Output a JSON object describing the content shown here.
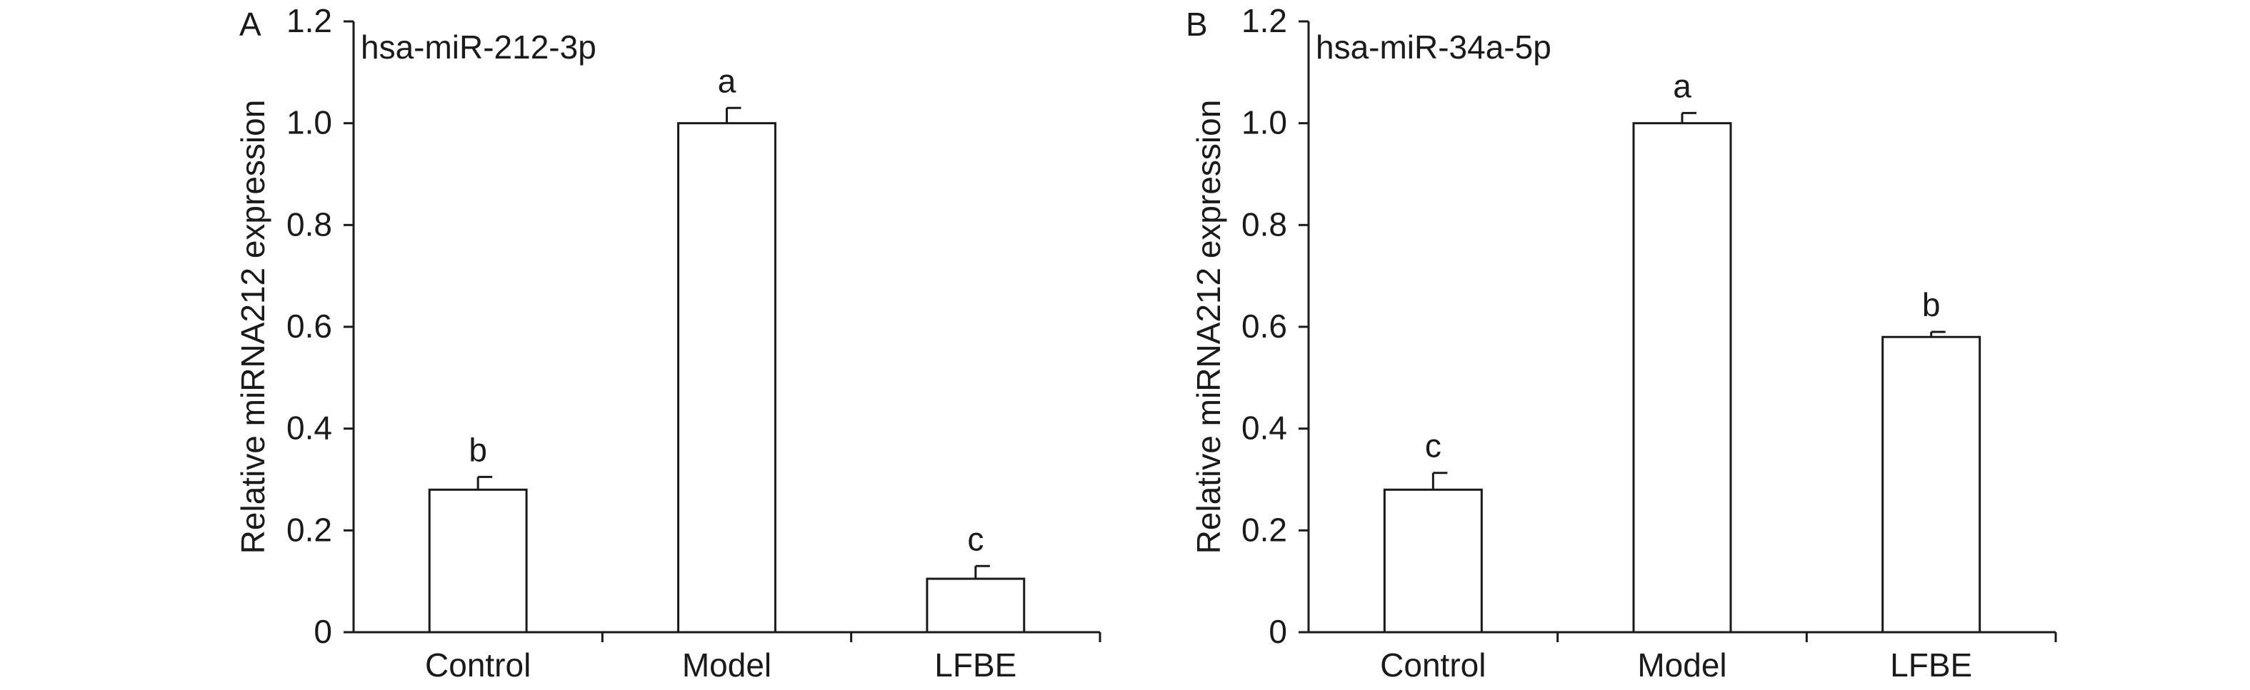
{
  "chart_data": [
    {
      "type": "bar",
      "panel_label": "A",
      "title": "hsa-miR-212-3p",
      "ylabel": "Relative miRNA212 expression",
      "xlabel": "",
      "ylim": [
        0,
        1.2
      ],
      "yticks": [
        0,
        0.2,
        0.4,
        0.6,
        0.8,
        1.0,
        1.2
      ],
      "ytick_labels": [
        "0",
        "0.2",
        "0.4",
        "0.6",
        "0.8",
        "1.0",
        "1.2"
      ],
      "categories": [
        "Control",
        "Model",
        "LFBE"
      ],
      "values": [
        0.28,
        1.0,
        0.105
      ],
      "errors": [
        0.025,
        0.03,
        0.025
      ],
      "significance_letters": [
        "b",
        "a",
        "c"
      ],
      "grid": false,
      "colors": {
        "bar_fill": "#ffffff",
        "bar_edge": "#1a1a1a"
      }
    },
    {
      "type": "bar",
      "panel_label": "B",
      "title": "hsa-miR-34a-5p",
      "ylabel": "Relative miRNA212 expression",
      "xlabel": "",
      "ylim": [
        0,
        1.2
      ],
      "yticks": [
        0,
        0.2,
        0.4,
        0.6,
        0.8,
        1.0,
        1.2
      ],
      "ytick_labels": [
        "0",
        "0.2",
        "0.4",
        "0.6",
        "0.8",
        "1.0",
        "1.2"
      ],
      "categories": [
        "Control",
        "Model",
        "LFBE"
      ],
      "values": [
        0.28,
        1.0,
        0.58
      ],
      "errors": [
        0.033,
        0.02,
        0.01
      ],
      "significance_letters": [
        "c",
        "a",
        "b"
      ],
      "grid": false,
      "colors": {
        "bar_fill": "#ffffff",
        "bar_edge": "#1a1a1a"
      }
    }
  ]
}
